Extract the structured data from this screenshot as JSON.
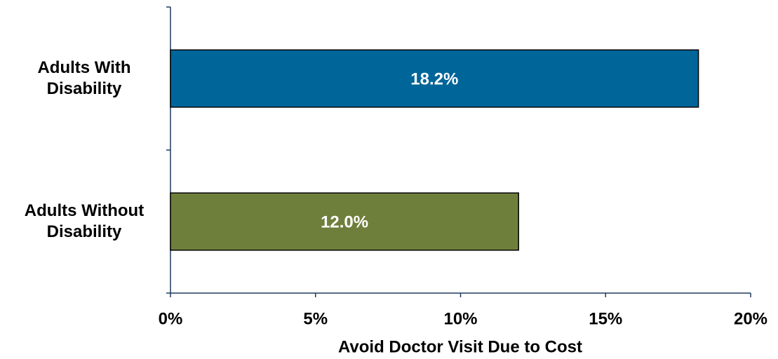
{
  "chart_data": {
    "type": "hbar",
    "x_label": "Avoid Doctor Visit Due to Cost",
    "categories": [
      "Adults With Disability",
      "Adults Without Disability"
    ],
    "values": [
      18.2,
      12.0
    ],
    "value_labels": [
      "18.2%",
      "12.0%"
    ],
    "colors": [
      "#00669a",
      "#6e7f3b"
    ],
    "xlim": [
      0,
      20
    ],
    "xticks": [
      {
        "value": 0,
        "label": "0%"
      },
      {
        "value": 5,
        "label": "5%"
      },
      {
        "value": 10,
        "label": "10%"
      },
      {
        "value": 15,
        "label": "15%"
      },
      {
        "value": 20,
        "label": "20%"
      }
    ],
    "grid": false
  }
}
